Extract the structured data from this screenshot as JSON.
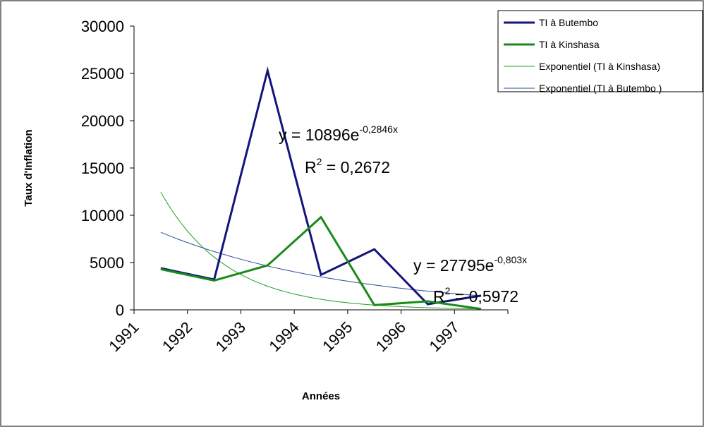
{
  "chart_data": {
    "type": "line",
    "title": "",
    "xlabel": "Années",
    "ylabel": "Taux d'Inflation",
    "categories": [
      "1991",
      "1992",
      "1993",
      "1994",
      "1995",
      "1996",
      "1997"
    ],
    "ylim": [
      0,
      30000
    ],
    "yticks": [
      "0",
      "5000",
      "10000",
      "15000",
      "20000",
      "25000",
      "30000"
    ],
    "grid": false,
    "legend_position": "top-right",
    "series": [
      {
        "name": "TI à Butembo",
        "kind": "data",
        "color": "#14147a",
        "values": [
          4400,
          3200,
          25300,
          3700,
          6400,
          600,
          1500
        ]
      },
      {
        "name": "TI à Kinshasa",
        "kind": "data",
        "color": "#1a8a1a",
        "values": [
          4300,
          3100,
          4700,
          9800,
          500,
          900,
          100
        ]
      },
      {
        "name": "Exponentiel (TI à Kinshasa)",
        "kind": "trend",
        "color": "#1e9e1e",
        "formula": {
          "a": 27795,
          "b": -0.803
        },
        "values": [
          12450,
          5570,
          2500,
          1120,
          500,
          220,
          100
        ]
      },
      {
        "name": "Exponentiel (TI à Butembo )",
        "kind": "trend",
        "color": "#2a4f8f",
        "formula": {
          "a": 10896,
          "b": -0.2846
        },
        "values": [
          8200,
          6180,
          4650,
          3500,
          2640,
          1990,
          1500
        ]
      }
    ],
    "annotations": [
      {
        "id": "butembo",
        "eq_base": "y = 10896e",
        "eq_exp": "-0,2846x",
        "r2_label": "R",
        "r2_exp": "2",
        "r2_value": " = 0,2672"
      },
      {
        "id": "kinshasa",
        "eq_base": "y = 27795e",
        "eq_exp": "-0,803x",
        "r2_label": "R",
        "r2_exp": "2",
        "r2_value": " = 0,5972"
      }
    ]
  }
}
